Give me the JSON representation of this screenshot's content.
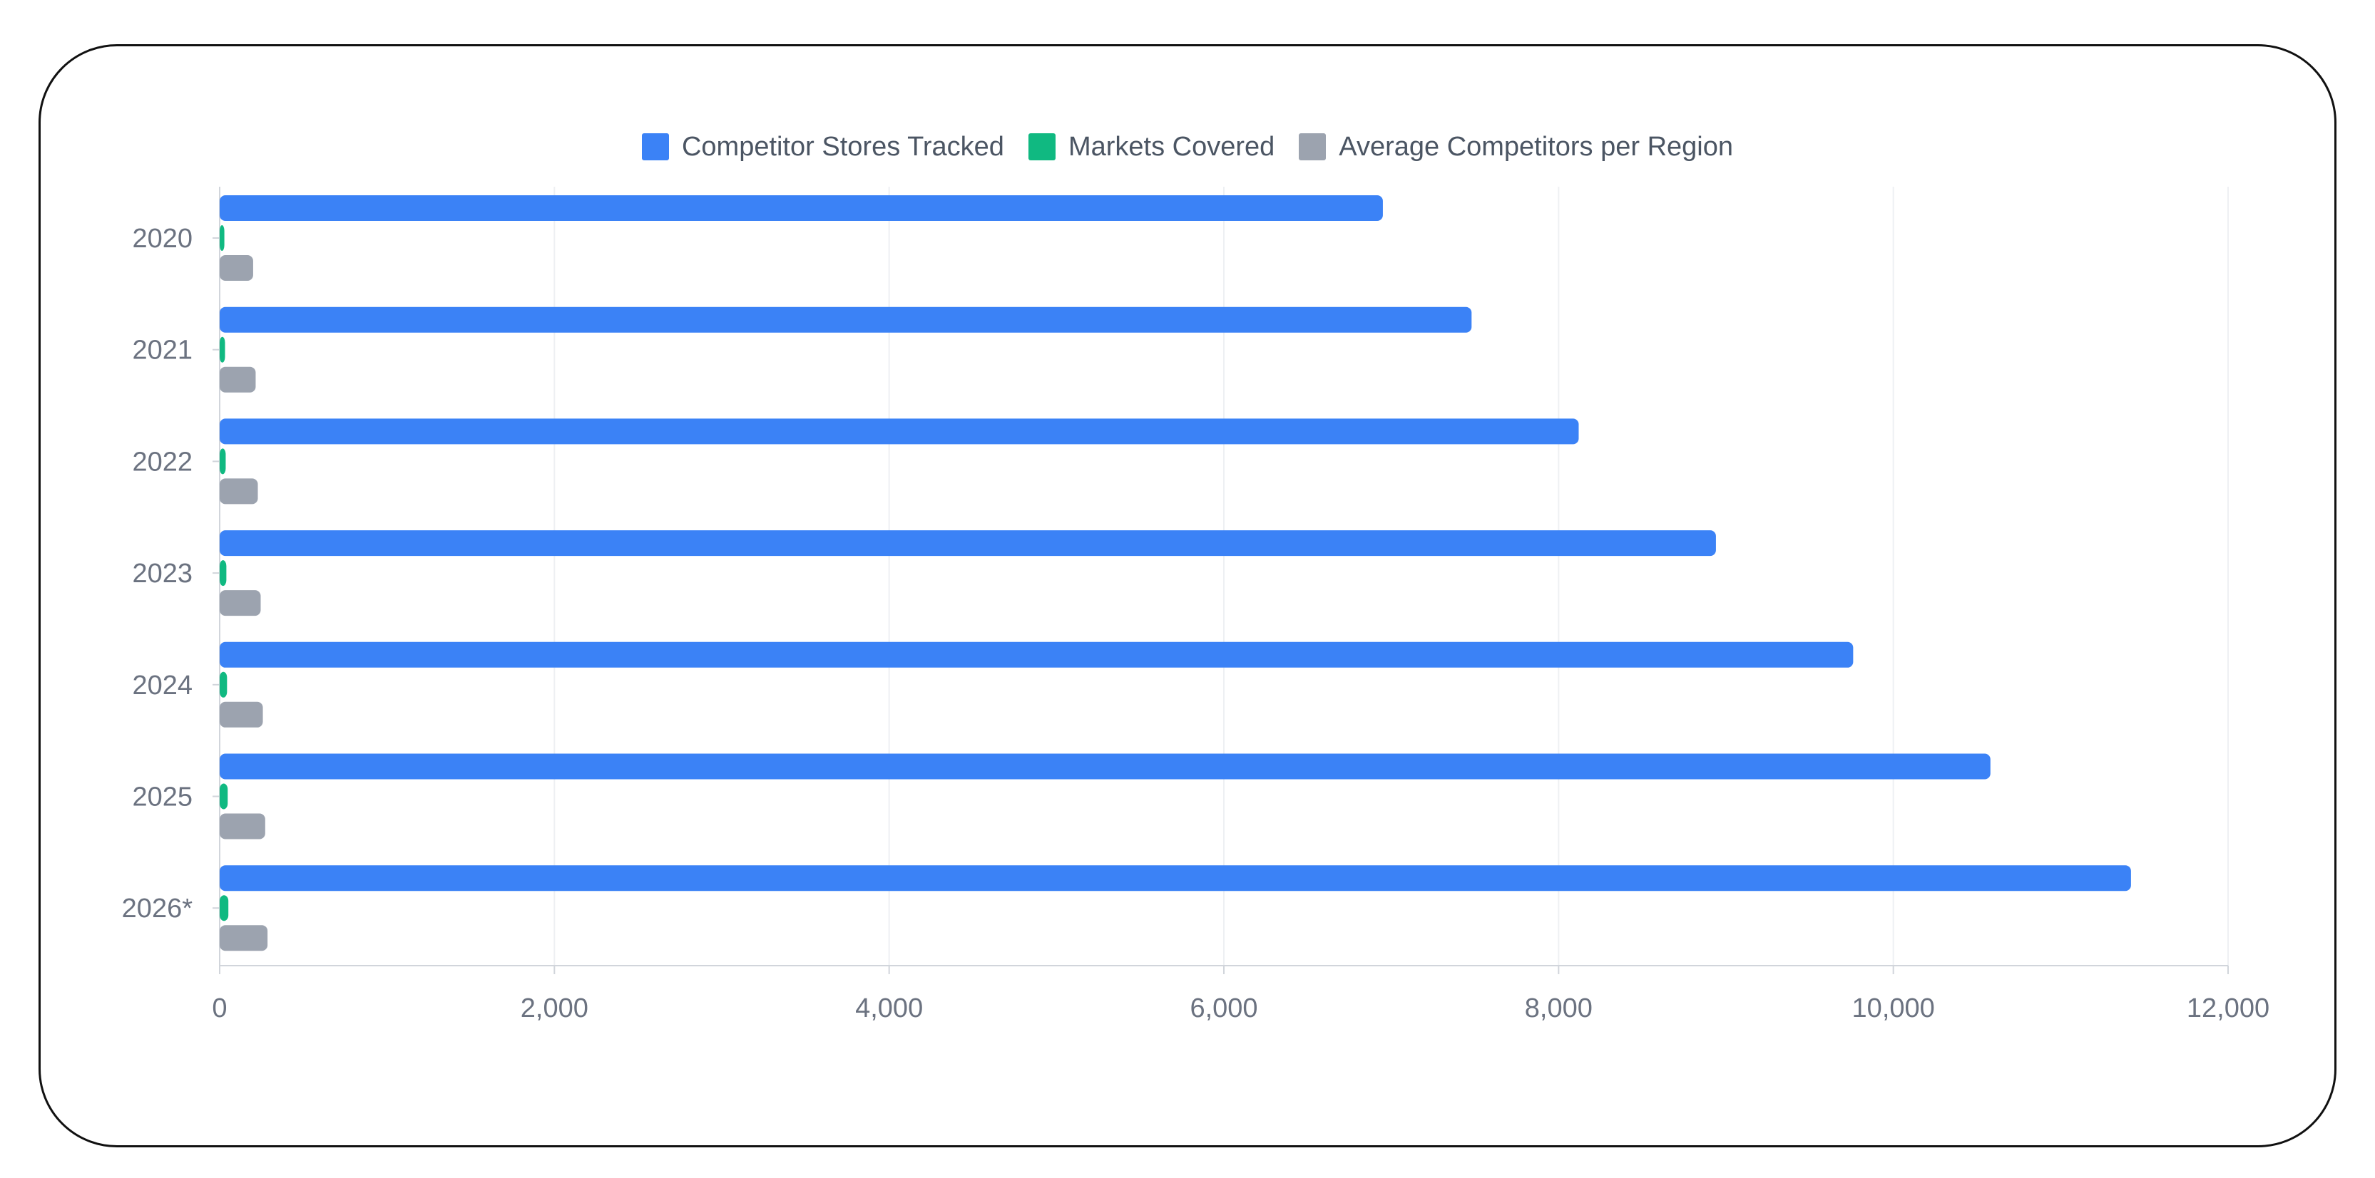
{
  "chart_data": {
    "type": "bar",
    "orientation": "horizontal",
    "categories": [
      "2020",
      "2021",
      "2022",
      "2023",
      "2024",
      "2025",
      "2026*"
    ],
    "series": [
      {
        "name": "Competitor Stores Tracked",
        "color": "#3b82f6",
        "values": [
          6950,
          7480,
          8120,
          8940,
          9760,
          10580,
          11420
        ]
      },
      {
        "name": "Markets Covered",
        "color": "#10b981",
        "values": [
          28,
          32,
          36,
          40,
          44,
          48,
          52
        ]
      },
      {
        "name": "Average Competitors per Region",
        "color": "#9ca3af",
        "values": [
          200,
          215,
          228,
          245,
          258,
          272,
          286
        ]
      }
    ],
    "xlim": [
      0,
      12000
    ],
    "xticks": [
      "0",
      "2,000",
      "4,000",
      "6,000",
      "8,000",
      "10,000",
      "12,000"
    ],
    "xtick_values": [
      0,
      2000,
      4000,
      6000,
      8000,
      10000,
      12000
    ],
    "grid": "vertical",
    "legend_position": "top-center"
  }
}
